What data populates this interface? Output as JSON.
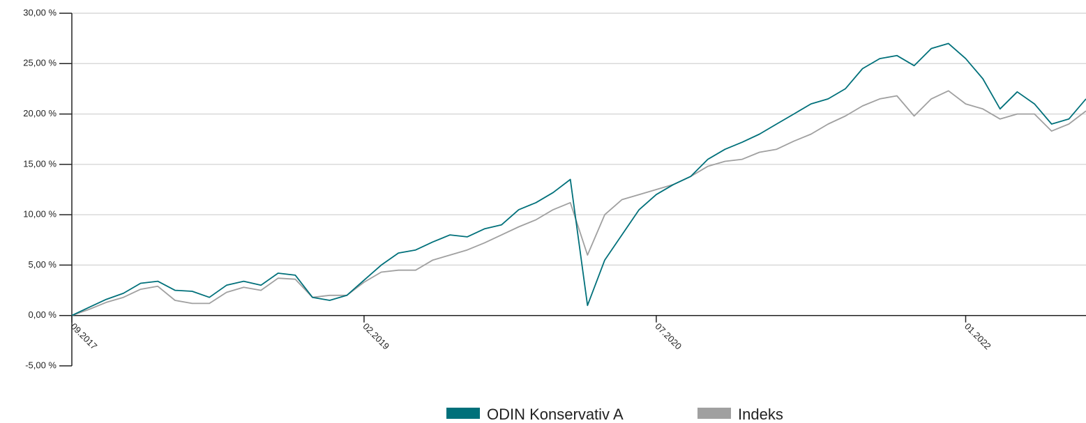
{
  "chart_data": {
    "type": "line",
    "x": [
      "09.2017",
      "10.2017",
      "11.2017",
      "12.2017",
      "01.2018",
      "02.2018",
      "03.2018",
      "04.2018",
      "05.2018",
      "06.2018",
      "07.2018",
      "08.2018",
      "09.2018",
      "10.2018",
      "11.2018",
      "12.2018",
      "01.2019",
      "02.2019",
      "03.2019",
      "04.2019",
      "05.2019",
      "06.2019",
      "07.2019",
      "08.2019",
      "09.2019",
      "10.2019",
      "11.2019",
      "12.2019",
      "01.2020",
      "02.2020",
      "03.2020",
      "04.2020",
      "05.2020",
      "06.2020",
      "07.2020",
      "08.2020",
      "09.2020",
      "10.2020",
      "11.2020",
      "12.2020",
      "01.2021",
      "02.2021",
      "03.2021",
      "04.2021",
      "05.2021",
      "06.2021",
      "07.2021",
      "08.2021",
      "09.2021",
      "10.2021",
      "11.2021",
      "12.2021",
      "01.2022",
      "02.2022",
      "03.2022",
      "04.2022",
      "05.2022",
      "06.2022",
      "07.2022",
      "08.2022"
    ],
    "series": [
      {
        "name": "ODIN Konservativ A",
        "color": "#00707a",
        "values": [
          0,
          0.8,
          1.6,
          2.2,
          3.2,
          3.4,
          2.5,
          2.4,
          1.8,
          3.0,
          3.4,
          3.0,
          4.2,
          4.0,
          1.8,
          1.5,
          2.0,
          3.5,
          5.0,
          6.2,
          6.5,
          7.3,
          8.0,
          7.8,
          8.6,
          9.0,
          10.5,
          11.2,
          12.2,
          13.5,
          1.0,
          5.5,
          8.0,
          10.5,
          12.0,
          13.0,
          13.8,
          15.5,
          16.5,
          17.2,
          18.0,
          19.0,
          20.0,
          21.0,
          21.5,
          22.5,
          24.5,
          25.5,
          25.8,
          24.8,
          26.5,
          27.0,
          25.5,
          23.5,
          20.5,
          22.2,
          21.0,
          19.0,
          19.5,
          21.5
        ]
      },
      {
        "name": "Indeks",
        "color": "#a0a0a0",
        "values": [
          0,
          0.6,
          1.3,
          1.8,
          2.6,
          2.9,
          1.5,
          1.2,
          1.2,
          2.3,
          2.8,
          2.5,
          3.7,
          3.6,
          1.8,
          2.0,
          2.0,
          3.3,
          4.3,
          4.5,
          4.5,
          5.5,
          6.0,
          6.5,
          7.2,
          8.0,
          8.8,
          9.5,
          10.5,
          11.2,
          6.0,
          10.0,
          11.5,
          12.0,
          12.5,
          13.0,
          13.8,
          14.8,
          15.3,
          15.5,
          16.2,
          16.5,
          17.3,
          18.0,
          19.0,
          19.8,
          20.8,
          21.5,
          21.8,
          19.8,
          21.5,
          22.3,
          21.0,
          20.5,
          19.5,
          20.0,
          20.0,
          18.3,
          19.0,
          20.3
        ]
      }
    ],
    "xlim": [
      "09.2017",
      "08.2022"
    ],
    "xticks": [
      "09.2017",
      "02.2019",
      "07.2020",
      "01.2022"
    ],
    "ylim": [
      -5,
      30
    ],
    "yticks": [
      {
        "value": -5,
        "label": "-5,00 %"
      },
      {
        "value": 0,
        "label": "0,00 %"
      },
      {
        "value": 5,
        "label": "5,00 %"
      },
      {
        "value": 10,
        "label": "10,00 %"
      },
      {
        "value": 15,
        "label": "15,00 %"
      },
      {
        "value": 20,
        "label": "20,00 %"
      },
      {
        "value": 25,
        "label": "25,00 %"
      },
      {
        "value": 30,
        "label": "30,00 %"
      }
    ],
    "grid": true
  }
}
